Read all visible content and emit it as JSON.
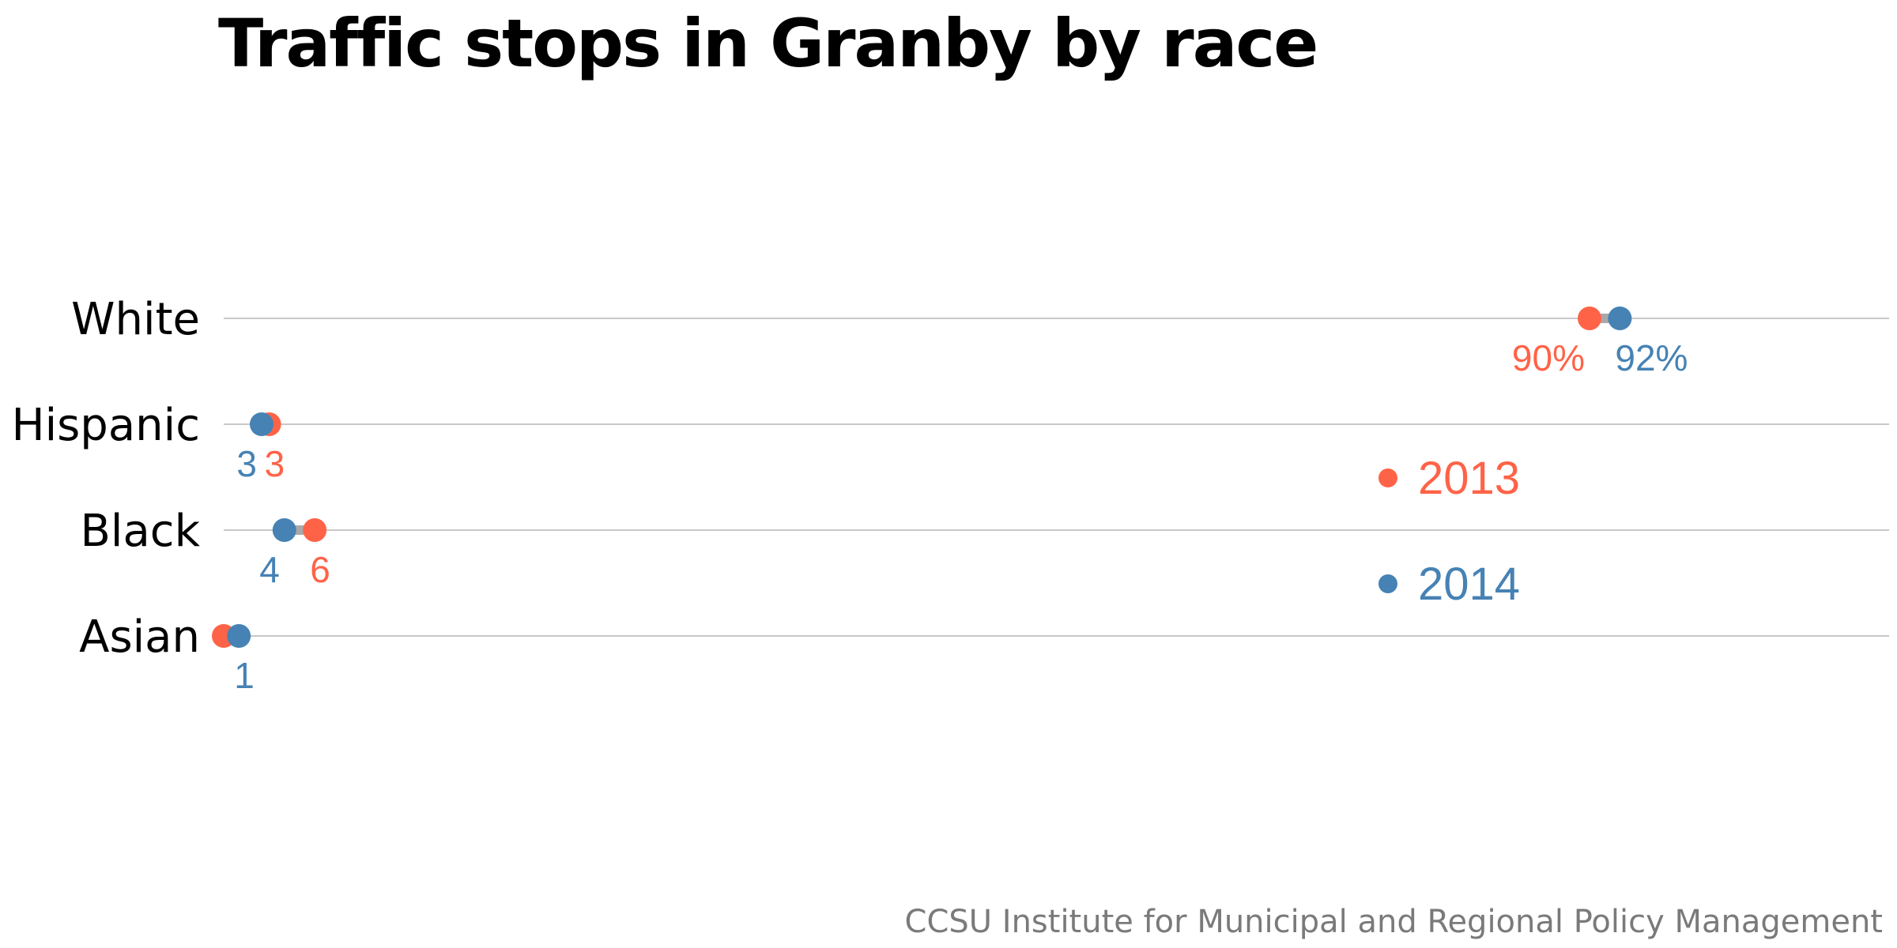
{
  "chart_data": {
    "type": "scatter",
    "subtype": "dumbbell",
    "title": "Traffic stops in Granby by race",
    "source": "CCSU Institute for Municipal and Regional Policy Management",
    "categories": [
      "White",
      "Hispanic",
      "Black",
      "Asian"
    ],
    "xlim": [
      0,
      100
    ],
    "xlabel": "",
    "ylabel": "",
    "grid": true,
    "legend_position": "right",
    "series": [
      {
        "name": "2013",
        "color": "#ff6347",
        "values": [
          90,
          3,
          6,
          0
        ],
        "labels": [
          "90%",
          "3",
          "6",
          ""
        ]
      },
      {
        "name": "2014",
        "color": "#4682b4",
        "values": [
          92,
          2.5,
          4,
          1
        ],
        "labels": [
          "92%",
          "3",
          "4",
          "1"
        ]
      }
    ]
  }
}
